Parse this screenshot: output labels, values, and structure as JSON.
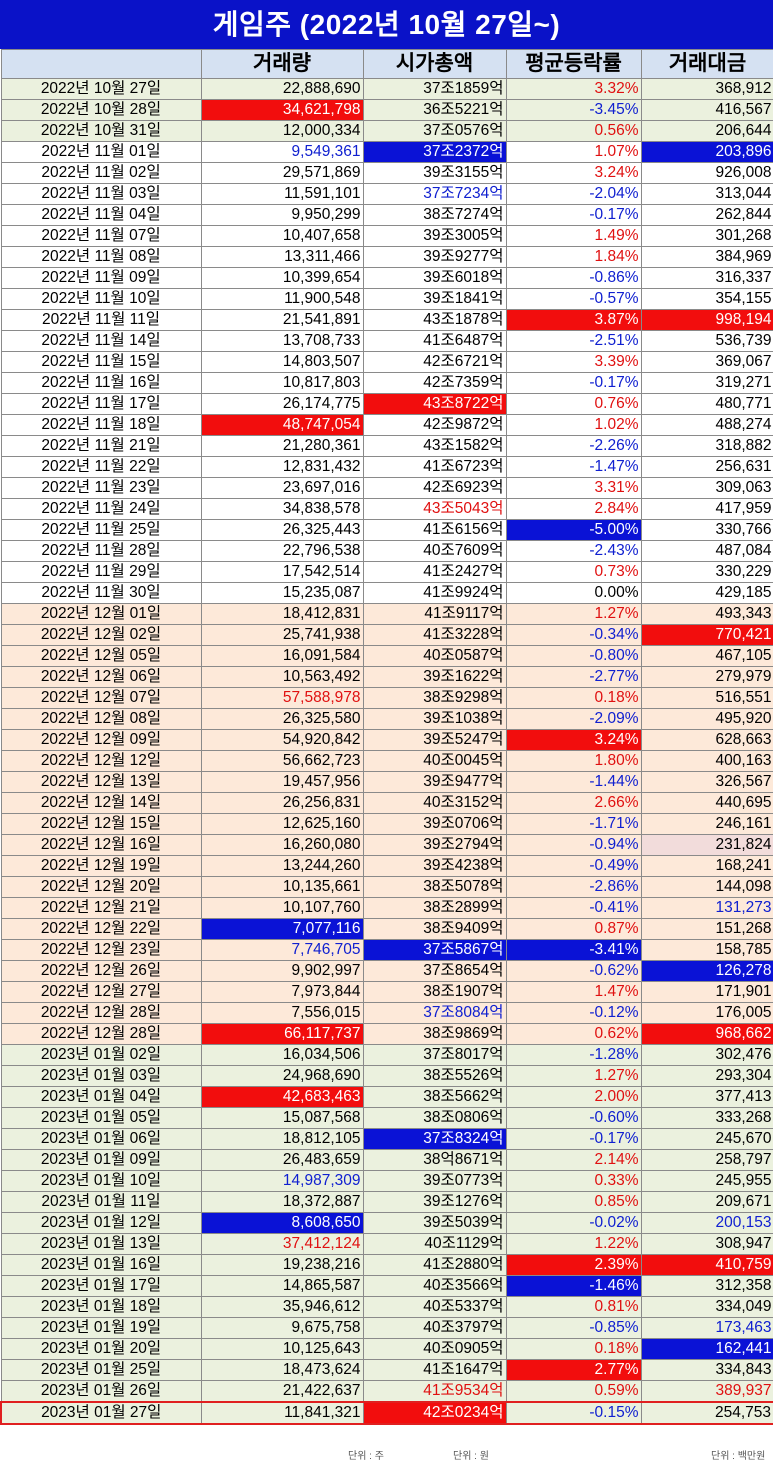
{
  "title": "게임주 (2022년 10월 27일~)",
  "columns": [
    "",
    "거래량",
    "시가총액",
    "평균등락률",
    "거래대금"
  ],
  "units": {
    "volume": "단위 : 주",
    "cap": "단위 : 원",
    "amount": "단위 : 백만원"
  },
  "colors": {
    "header_bg": "#d5e1f2",
    "title_bg": "#0a12c8",
    "highlight_red": "#f20d0d",
    "highlight_blue": "#0a12d6",
    "row_green": "#ebf1de",
    "row_peach": "#fde9d9"
  },
  "rows": [
    {
      "date": "2022년 10월 27일",
      "volume": "22,888,690",
      "cap": "37조1859억",
      "rate": "3.32%",
      "amount": "368,912",
      "g": "green",
      "s": [
        "",
        "",
        "r",
        ""
      ]
    },
    {
      "date": "2022년 10월 28일",
      "volume": "34,621,798",
      "cap": "36조5221억",
      "rate": "-3.45%",
      "amount": "416,567",
      "g": "green",
      "s": [
        "R",
        "",
        "b",
        ""
      ]
    },
    {
      "date": "2022년 10월 31일",
      "volume": "12,000,334",
      "cap": "37조0576억",
      "rate": "0.56%",
      "amount": "206,644",
      "g": "green",
      "s": [
        "",
        "",
        "r",
        ""
      ]
    },
    {
      "date": "2022년 11월 01일",
      "volume": "9,549,361",
      "cap": "37조2372억",
      "rate": "1.07%",
      "amount": "203,896",
      "g": "white",
      "s": [
        "b",
        "B",
        "r",
        "B"
      ]
    },
    {
      "date": "2022년 11월 02일",
      "volume": "29,571,869",
      "cap": "39조3155억",
      "rate": "3.24%",
      "amount": "926,008",
      "g": "white",
      "s": [
        "",
        "",
        "r",
        ""
      ]
    },
    {
      "date": "2022년 11월 03일",
      "volume": "11,591,101",
      "cap": "37조7234억",
      "rate": "-2.04%",
      "amount": "313,044",
      "g": "white",
      "s": [
        "",
        "b",
        "b",
        ""
      ]
    },
    {
      "date": "2022년 11월 04일",
      "volume": "9,950,299",
      "cap": "38조7274억",
      "rate": "-0.17%",
      "amount": "262,844",
      "g": "white",
      "s": [
        "",
        "",
        "b",
        ""
      ]
    },
    {
      "date": "2022년 11월 07일",
      "volume": "10,407,658",
      "cap": "39조3005억",
      "rate": "1.49%",
      "amount": "301,268",
      "g": "white",
      "s": [
        "",
        "",
        "r",
        ""
      ]
    },
    {
      "date": "2022년 11월 08일",
      "volume": "13,311,466",
      "cap": "39조9277억",
      "rate": "1.84%",
      "amount": "384,969",
      "g": "white",
      "s": [
        "",
        "",
        "r",
        ""
      ]
    },
    {
      "date": "2022년 11월 09일",
      "volume": "10,399,654",
      "cap": "39조6018억",
      "rate": "-0.86%",
      "amount": "316,337",
      "g": "white",
      "s": [
        "",
        "",
        "b",
        ""
      ]
    },
    {
      "date": "2022년 11월 10일",
      "volume": "11,900,548",
      "cap": "39조1841억",
      "rate": "-0.57%",
      "amount": "354,155",
      "g": "white",
      "s": [
        "",
        "",
        "b",
        ""
      ]
    },
    {
      "date": "2022년 11월 11일",
      "volume": "21,541,891",
      "cap": "43조1878억",
      "rate": "3.87%",
      "amount": "998,194",
      "g": "white",
      "s": [
        "",
        "",
        "R",
        "R"
      ]
    },
    {
      "date": "2022년 11월 14일",
      "volume": "13,708,733",
      "cap": "41조6487억",
      "rate": "-2.51%",
      "amount": "536,739",
      "g": "white",
      "s": [
        "",
        "",
        "b",
        ""
      ]
    },
    {
      "date": "2022년 11월 15일",
      "volume": "14,803,507",
      "cap": "42조6721억",
      "rate": "3.39%",
      "amount": "369,067",
      "g": "white",
      "s": [
        "",
        "",
        "r",
        ""
      ]
    },
    {
      "date": "2022년 11월 16일",
      "volume": "10,817,803",
      "cap": "42조7359억",
      "rate": "-0.17%",
      "amount": "319,271",
      "g": "white",
      "s": [
        "",
        "",
        "b",
        ""
      ]
    },
    {
      "date": "2022년 11월 17일",
      "volume": "26,174,775",
      "cap": "43조8722억",
      "rate": "0.76%",
      "amount": "480,771",
      "g": "white",
      "s": [
        "",
        "R",
        "r",
        ""
      ]
    },
    {
      "date": "2022년 11월 18일",
      "volume": "48,747,054",
      "cap": "42조9872억",
      "rate": "1.02%",
      "amount": "488,274",
      "g": "white",
      "s": [
        "R",
        "",
        "r",
        ""
      ]
    },
    {
      "date": "2022년 11월 21일",
      "volume": "21,280,361",
      "cap": "43조1582억",
      "rate": "-2.26%",
      "amount": "318,882",
      "g": "white",
      "s": [
        "",
        "",
        "b",
        ""
      ]
    },
    {
      "date": "2022년 11월 22일",
      "volume": "12,831,432",
      "cap": "41조6723억",
      "rate": "-1.47%",
      "amount": "256,631",
      "g": "white",
      "s": [
        "",
        "",
        "b",
        ""
      ]
    },
    {
      "date": "2022년 11월 23일",
      "volume": "23,697,016",
      "cap": "42조6923억",
      "rate": "3.31%",
      "amount": "309,063",
      "g": "white",
      "s": [
        "",
        "",
        "r",
        ""
      ]
    },
    {
      "date": "2022년 11월 24일",
      "volume": "34,838,578",
      "cap": "43조5043억",
      "rate": "2.84%",
      "amount": "417,959",
      "g": "white",
      "s": [
        "",
        "r",
        "r",
        ""
      ]
    },
    {
      "date": "2022년 11월 25일",
      "volume": "26,325,443",
      "cap": "41조6156억",
      "rate": "-5.00%",
      "amount": "330,766",
      "g": "white",
      "s": [
        "",
        "",
        "B",
        ""
      ]
    },
    {
      "date": "2022년 11월 28일",
      "volume": "22,796,538",
      "cap": "40조7609억",
      "rate": "-2.43%",
      "amount": "487,084",
      "g": "white",
      "s": [
        "",
        "",
        "b",
        ""
      ]
    },
    {
      "date": "2022년 11월 29일",
      "volume": "17,542,514",
      "cap": "41조2427억",
      "rate": "0.73%",
      "amount": "330,229",
      "g": "white",
      "s": [
        "",
        "",
        "r",
        ""
      ]
    },
    {
      "date": "2022년 11월 30일",
      "volume": "15,235,087",
      "cap": "41조9924억",
      "rate": "0.00%",
      "amount": "429,185",
      "g": "white",
      "s": [
        "",
        "",
        "",
        ""
      ]
    },
    {
      "date": "2022년 12월 01일",
      "volume": "18,412,831",
      "cap": "41조9117억",
      "rate": "1.27%",
      "amount": "493,343",
      "g": "peach",
      "s": [
        "",
        "",
        "r",
        ""
      ]
    },
    {
      "date": "2022년 12월 02일",
      "volume": "25,741,938",
      "cap": "41조3228억",
      "rate": "-0.34%",
      "amount": "770,421",
      "g": "peach",
      "s": [
        "",
        "",
        "b",
        "R"
      ]
    },
    {
      "date": "2022년 12월 05일",
      "volume": "16,091,584",
      "cap": "40조0587억",
      "rate": "-0.80%",
      "amount": "467,105",
      "g": "peach",
      "s": [
        "",
        "",
        "b",
        ""
      ]
    },
    {
      "date": "2022년 12월 06일",
      "volume": "10,563,492",
      "cap": "39조1622억",
      "rate": "-2.77%",
      "amount": "279,979",
      "g": "peach",
      "s": [
        "",
        "",
        "b",
        ""
      ]
    },
    {
      "date": "2022년 12월 07일",
      "volume": "57,588,978",
      "cap": "38조9298억",
      "rate": "0.18%",
      "amount": "516,551",
      "g": "peach",
      "s": [
        "r",
        "",
        "r",
        ""
      ]
    },
    {
      "date": "2022년 12월 08일",
      "volume": "26,325,580",
      "cap": "39조1038억",
      "rate": "-2.09%",
      "amount": "495,920",
      "g": "peach",
      "s": [
        "",
        "",
        "b",
        ""
      ]
    },
    {
      "date": "2022년 12월 09일",
      "volume": "54,920,842",
      "cap": "39조5247억",
      "rate": "3.24%",
      "amount": "628,663",
      "g": "peach",
      "s": [
        "",
        "",
        "R",
        ""
      ]
    },
    {
      "date": "2022년 12월 12일",
      "volume": "56,662,723",
      "cap": "40조0045억",
      "rate": "1.80%",
      "amount": "400,163",
      "g": "peach",
      "s": [
        "",
        "",
        "r",
        ""
      ]
    },
    {
      "date": "2022년 12월 13일",
      "volume": "19,457,956",
      "cap": "39조9477억",
      "rate": "-1.44%",
      "amount": "326,567",
      "g": "peach",
      "s": [
        "",
        "",
        "b",
        ""
      ]
    },
    {
      "date": "2022년 12월 14일",
      "volume": "26,256,831",
      "cap": "40조3152억",
      "rate": "2.66%",
      "amount": "440,695",
      "g": "peach",
      "s": [
        "",
        "",
        "r",
        ""
      ]
    },
    {
      "date": "2022년 12월 15일",
      "volume": "12,625,160",
      "cap": "39조0706억",
      "rate": "-1.71%",
      "amount": "246,161",
      "g": "peach",
      "s": [
        "",
        "",
        "b",
        ""
      ]
    },
    {
      "date": "2022년 12월 16일",
      "volume": "16,260,080",
      "cap": "39조2794억",
      "rate": "-0.94%",
      "amount": "231,824",
      "g": "peach",
      "s": [
        "",
        "",
        "b",
        "P"
      ]
    },
    {
      "date": "2022년 12월 19일",
      "volume": "13,244,260",
      "cap": "39조4238억",
      "rate": "-0.49%",
      "amount": "168,241",
      "g": "peach",
      "s": [
        "",
        "",
        "b",
        ""
      ]
    },
    {
      "date": "2022년 12월 20일",
      "volume": "10,135,661",
      "cap": "38조5078억",
      "rate": "-2.86%",
      "amount": "144,098",
      "g": "peach",
      "s": [
        "",
        "",
        "b",
        ""
      ]
    },
    {
      "date": "2022년 12월 21일",
      "volume": "10,107,760",
      "cap": "38조2899억",
      "rate": "-0.41%",
      "amount": "131,273",
      "g": "peach",
      "s": [
        "",
        "",
        "b",
        "b"
      ]
    },
    {
      "date": "2022년 12월 22일",
      "volume": "7,077,116",
      "cap": "38조9409억",
      "rate": "0.87%",
      "amount": "151,268",
      "g": "peach",
      "s": [
        "B",
        "",
        "r",
        ""
      ]
    },
    {
      "date": "2022년 12월 23일",
      "volume": "7,746,705",
      "cap": "37조5867억",
      "rate": "-3.41%",
      "amount": "158,785",
      "g": "peach",
      "s": [
        "b",
        "B",
        "B",
        ""
      ]
    },
    {
      "date": "2022년 12월 26일",
      "volume": "9,902,997",
      "cap": "37조8654억",
      "rate": "-0.62%",
      "amount": "126,278",
      "g": "peach",
      "s": [
        "",
        "",
        "b",
        "B"
      ]
    },
    {
      "date": "2022년 12월 27일",
      "volume": "7,973,844",
      "cap": "38조1907억",
      "rate": "1.47%",
      "amount": "171,901",
      "g": "peach",
      "s": [
        "",
        "",
        "r",
        ""
      ]
    },
    {
      "date": "2022년 12월 28일",
      "volume": "7,556,015",
      "cap": "37조8084억",
      "rate": "-0.12%",
      "amount": "176,005",
      "g": "peach",
      "s": [
        "",
        "b",
        "b",
        ""
      ]
    },
    {
      "date": "2022년 12월 28일",
      "volume": "66,117,737",
      "cap": "38조9869억",
      "rate": "0.62%",
      "amount": "968,662",
      "g": "peach",
      "s": [
        "R",
        "",
        "r",
        "R"
      ]
    },
    {
      "date": "2023년 01월 02일",
      "volume": "16,034,506",
      "cap": "37조8017억",
      "rate": "-1.28%",
      "amount": "302,476",
      "g": "green",
      "s": [
        "",
        "",
        "b",
        ""
      ]
    },
    {
      "date": "2023년 01월 03일",
      "volume": "24,968,690",
      "cap": "38조5526억",
      "rate": "1.27%",
      "amount": "293,304",
      "g": "green",
      "s": [
        "",
        "",
        "r",
        ""
      ]
    },
    {
      "date": "2023년 01월 04일",
      "volume": "42,683,463",
      "cap": "38조5662억",
      "rate": "2.00%",
      "amount": "377,413",
      "g": "green",
      "s": [
        "R",
        "",
        "r",
        ""
      ]
    },
    {
      "date": "2023년 01월 05일",
      "volume": "15,087,568",
      "cap": "38조0806억",
      "rate": "-0.60%",
      "amount": "333,268",
      "g": "green",
      "s": [
        "",
        "",
        "b",
        ""
      ]
    },
    {
      "date": "2023년 01월 06일",
      "volume": "18,812,105",
      "cap": "37조8324억",
      "rate": "-0.17%",
      "amount": "245,670",
      "g": "green",
      "s": [
        "",
        "B",
        "b",
        ""
      ]
    },
    {
      "date": "2023년 01월 09일",
      "volume": "26,483,659",
      "cap": "38억8671억",
      "rate": "2.14%",
      "amount": "258,797",
      "g": "green",
      "s": [
        "",
        "",
        "r",
        ""
      ]
    },
    {
      "date": "2023년 01월 10일",
      "volume": "14,987,309",
      "cap": "39조0773억",
      "rate": "0.33%",
      "amount": "245,955",
      "g": "green",
      "s": [
        "b",
        "",
        "r",
        ""
      ]
    },
    {
      "date": "2023년 01월 11일",
      "volume": "18,372,887",
      "cap": "39조1276억",
      "rate": "0.85%",
      "amount": "209,671",
      "g": "green",
      "s": [
        "",
        "",
        "r",
        ""
      ]
    },
    {
      "date": "2023년 01월 12일",
      "volume": "8,608,650",
      "cap": "39조5039억",
      "rate": "-0.02%",
      "amount": "200,153",
      "g": "green",
      "s": [
        "B",
        "",
        "b",
        "b"
      ]
    },
    {
      "date": "2023년 01월 13일",
      "volume": "37,412,124",
      "cap": "40조1129억",
      "rate": "1.22%",
      "amount": "308,947",
      "g": "green",
      "s": [
        "r",
        "",
        "r",
        ""
      ]
    },
    {
      "date": "2023년 01월 16일",
      "volume": "19,238,216",
      "cap": "41조2880억",
      "rate": "2.39%",
      "amount": "410,759",
      "g": "green",
      "s": [
        "",
        "",
        "R",
        "R"
      ]
    },
    {
      "date": "2023년 01월 17일",
      "volume": "14,865,587",
      "cap": "40조3566억",
      "rate": "-1.46%",
      "amount": "312,358",
      "g": "green",
      "s": [
        "",
        "",
        "B",
        ""
      ]
    },
    {
      "date": "2023년 01월 18일",
      "volume": "35,946,612",
      "cap": "40조5337억",
      "rate": "0.81%",
      "amount": "334,049",
      "g": "green",
      "s": [
        "",
        "",
        "r",
        ""
      ]
    },
    {
      "date": "2023년 01월 19일",
      "volume": "9,675,758",
      "cap": "40조3797억",
      "rate": "-0.85%",
      "amount": "173,463",
      "g": "green",
      "s": [
        "",
        "",
        "b",
        "b"
      ]
    },
    {
      "date": "2023년 01월 20일",
      "volume": "10,125,643",
      "cap": "40조0905억",
      "rate": "0.18%",
      "amount": "162,441",
      "g": "green",
      "s": [
        "",
        "",
        "r",
        "B"
      ]
    },
    {
      "date": "2023년 01월 25일",
      "volume": "18,473,624",
      "cap": "41조1647억",
      "rate": "2.77%",
      "amount": "334,843",
      "g": "green",
      "s": [
        "",
        "",
        "R",
        ""
      ]
    },
    {
      "date": "2023년 01월 26일",
      "volume": "21,422,637",
      "cap": "41조9534억",
      "rate": "0.59%",
      "amount": "389,937",
      "g": "green",
      "s": [
        "",
        "r",
        "r",
        "r"
      ]
    },
    {
      "date": "2023년 01월 27일",
      "volume": "11,841,321",
      "cap": "42조0234억",
      "rate": "-0.15%",
      "amount": "254,753",
      "g": "green",
      "s": [
        "",
        "R",
        "b",
        ""
      ],
      "last": true
    }
  ]
}
